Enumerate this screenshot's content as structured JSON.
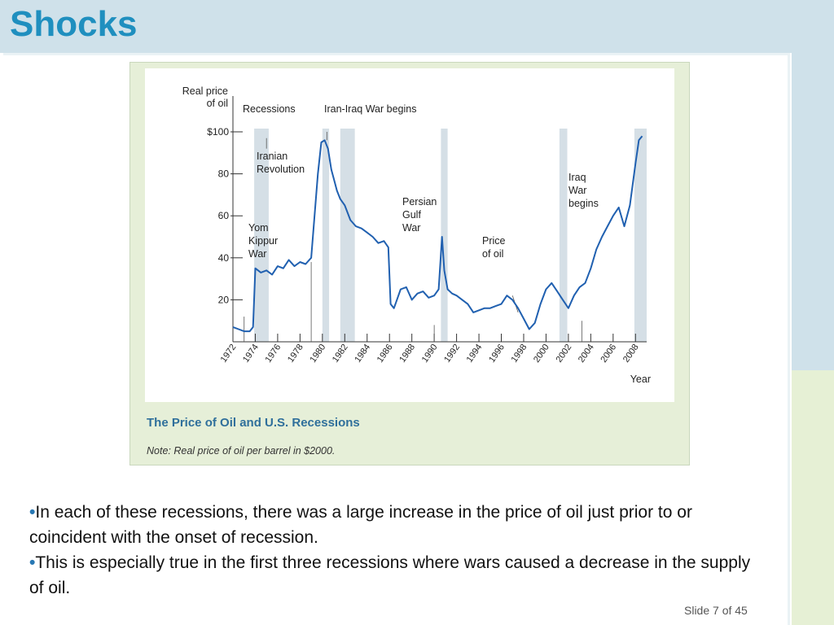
{
  "slide": {
    "title": "Shocks",
    "slide_number": "Slide 7 of 45"
  },
  "figure": {
    "caption_title": "The Price of Oil and U.S. Recessions",
    "caption_note": "Note: Real price of oil per barrel in $2000."
  },
  "bullets": [
    "In each of these recessions, there was a large increase in the price of oil just prior to or coincident with the onset of recession.",
    "This is especially true in the first three recessions where wars caused a decrease in the supply of oil."
  ],
  "colors": {
    "title": "#1f8fbf",
    "line": "#2060b0",
    "recession_band": "#d5dfe6",
    "caption": "#2f6f9b"
  },
  "chart_data": {
    "type": "line",
    "title": "",
    "xlabel": "Year",
    "ylabel": "Real price of oil",
    "xlim": [
      1972,
      2009
    ],
    "ylim": [
      0,
      100
    ],
    "x_ticks": [
      1972,
      1974,
      1976,
      1978,
      1980,
      1982,
      1984,
      1986,
      1988,
      1990,
      1992,
      1994,
      1996,
      1998,
      2000,
      2002,
      2004,
      2006,
      2008
    ],
    "y_ticks": [
      20,
      40,
      60,
      80,
      100
    ],
    "y_tick_labels": [
      "20",
      "40",
      "60",
      "80",
      "$100"
    ],
    "grid": false,
    "legend": "none",
    "recessions": [
      [
        1973.9,
        1975.2
      ],
      [
        1980.0,
        1980.6
      ],
      [
        1981.6,
        1982.9
      ],
      [
        1990.6,
        1991.2
      ],
      [
        2001.2,
        2001.9
      ],
      [
        2007.9,
        2009.0
      ]
    ],
    "annotations": [
      {
        "text": "Recessions",
        "x": 1975.0,
        "y": 97
      },
      {
        "text": "Iran-Iraq War begins",
        "x": 1980.7,
        "y": 100
      },
      {
        "text": "Iranian Revolution",
        "x": 1979.0,
        "y": 40
      },
      {
        "text": "Yom Kippur War",
        "x": 1973.0,
        "y": 10
      },
      {
        "text": "Persian Gulf War",
        "x": 1990.0,
        "y": 10
      },
      {
        "text": "Price of oil",
        "x": 1997.0,
        "y": 22
      },
      {
        "text": "Iraq War begins",
        "x": 2003.2,
        "y": 10
      }
    ],
    "series": [
      {
        "x": [
          1972.0,
          1972.5,
          1973.0,
          1973.5,
          1973.8,
          1974.0,
          1974.5,
          1975.0,
          1975.5,
          1976.0,
          1976.5,
          1977.0,
          1977.5,
          1978.0,
          1978.5,
          1979.0,
          1979.3,
          1979.6,
          1979.9,
          1980.2,
          1980.5,
          1980.8,
          1981.0,
          1981.3,
          1981.6,
          1982.0,
          1982.5,
          1983.0,
          1983.5,
          1984.0,
          1984.5,
          1985.0,
          1985.5,
          1985.9,
          1986.1,
          1986.4,
          1986.8,
          1987.0,
          1987.5,
          1988.0,
          1988.5,
          1989.0,
          1989.5,
          1990.0,
          1990.4,
          1990.7,
          1990.9,
          1991.2,
          1991.6,
          1992.0,
          1992.5,
          1993.0,
          1993.5,
          1994.0,
          1994.5,
          1995.0,
          1995.5,
          1996.0,
          1996.5,
          1997.0,
          1997.5,
          1998.0,
          1998.5,
          1999.0,
          1999.5,
          2000.0,
          2000.5,
          2001.0,
          2001.5,
          2002.0,
          2002.5,
          2003.0,
          2003.5,
          2004.0,
          2004.5,
          2005.0,
          2005.5,
          2006.0,
          2006.5,
          2007.0,
          2007.5,
          2008.0,
          2008.3,
          2008.6
        ],
        "y": [
          7,
          6,
          5,
          5,
          7,
          35,
          33,
          34,
          32,
          36,
          35,
          39,
          36,
          38,
          37,
          40,
          60,
          80,
          95,
          96,
          92,
          82,
          78,
          72,
          68,
          65,
          58,
          55,
          54,
          52,
          50,
          47,
          48,
          45,
          18,
          16,
          22,
          25,
          26,
          20,
          23,
          24,
          21,
          22,
          25,
          50,
          34,
          25,
          23,
          22,
          20,
          18,
          14,
          15,
          16,
          16,
          17,
          18,
          22,
          20,
          16,
          11,
          6,
          9,
          18,
          25,
          28,
          24,
          20,
          16,
          22,
          26,
          28,
          35,
          44,
          50,
          55,
          60,
          64,
          55,
          65,
          85,
          96,
          98
        ]
      }
    ]
  }
}
